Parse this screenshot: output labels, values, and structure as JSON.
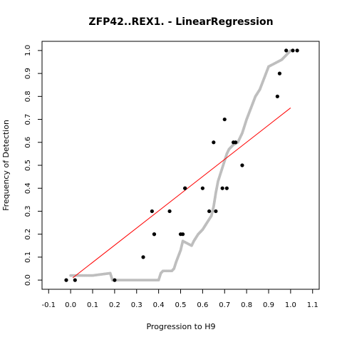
{
  "chart_data": {
    "type": "scatter",
    "title": "ZFP42..REX1. - LinearRegression",
    "xlabel": "Progression to H9",
    "ylabel": "Frequency of Detection",
    "xlim": [
      -0.13,
      1.13
    ],
    "ylim": [
      -0.04,
      1.04
    ],
    "x_ticks": [
      "-0.1",
      "0.0",
      "0.1",
      "0.2",
      "0.3",
      "0.4",
      "0.5",
      "0.6",
      "0.7",
      "0.8",
      "0.9",
      "1.0",
      "1.1"
    ],
    "y_ticks": [
      "0.0",
      "0.1",
      "0.2",
      "0.3",
      "0.4",
      "0.5",
      "0.6",
      "0.7",
      "0.8",
      "0.9",
      "1.0"
    ],
    "grid": false,
    "legend": "none",
    "colors": {
      "observed": "#000000",
      "smoothed": "#bebebe",
      "regression": "#ff0000"
    },
    "series": [
      {
        "kind": "points",
        "x": [
          -0.02,
          0.02,
          0.2,
          0.33,
          0.37,
          0.38,
          0.38,
          0.45,
          0.5,
          0.51,
          0.52,
          0.52,
          0.6,
          0.63,
          0.65,
          0.66,
          0.69,
          0.7,
          0.71,
          0.74,
          0.75,
          0.78,
          0.94,
          0.95,
          0.98,
          1.01,
          1.03
        ],
        "y": [
          0.0,
          0.0,
          0.0,
          0.1,
          0.3,
          0.2,
          0.2,
          0.3,
          0.2,
          0.2,
          0.4,
          0.4,
          0.4,
          0.3,
          0.6,
          0.3,
          0.4,
          0.7,
          0.4,
          0.6,
          0.6,
          0.5,
          0.8,
          0.9,
          1.0,
          1.0,
          1.0
        ]
      },
      {
        "kind": "smoothed-curve",
        "x": [
          0.0,
          0.02,
          0.1,
          0.18,
          0.19,
          0.2,
          0.3,
          0.4,
          0.41,
          0.42,
          0.44,
          0.46,
          0.47,
          0.48,
          0.5,
          0.51,
          0.53,
          0.55,
          0.56,
          0.58,
          0.6,
          0.62,
          0.64,
          0.65,
          0.66,
          0.67,
          0.68,
          0.69,
          0.7,
          0.71,
          0.72,
          0.73,
          0.74,
          0.76,
          0.78,
          0.8,
          0.82,
          0.84,
          0.86,
          0.88,
          0.9,
          0.92,
          0.94,
          0.96,
          0.98,
          1.0
        ],
        "y": [
          0.02,
          0.02,
          0.02,
          0.03,
          0.0,
          0.0,
          0.0,
          0.0,
          0.03,
          0.04,
          0.04,
          0.04,
          0.05,
          0.08,
          0.13,
          0.17,
          0.16,
          0.15,
          0.17,
          0.2,
          0.22,
          0.25,
          0.28,
          0.32,
          0.38,
          0.43,
          0.46,
          0.49,
          0.52,
          0.55,
          0.57,
          0.58,
          0.59,
          0.6,
          0.64,
          0.7,
          0.75,
          0.8,
          0.83,
          0.88,
          0.93,
          0.94,
          0.95,
          0.96,
          0.98,
          1.0
        ]
      },
      {
        "kind": "regression-line",
        "x": [
          0.01,
          1.0
        ],
        "y": [
          0.01,
          0.75
        ]
      }
    ]
  }
}
